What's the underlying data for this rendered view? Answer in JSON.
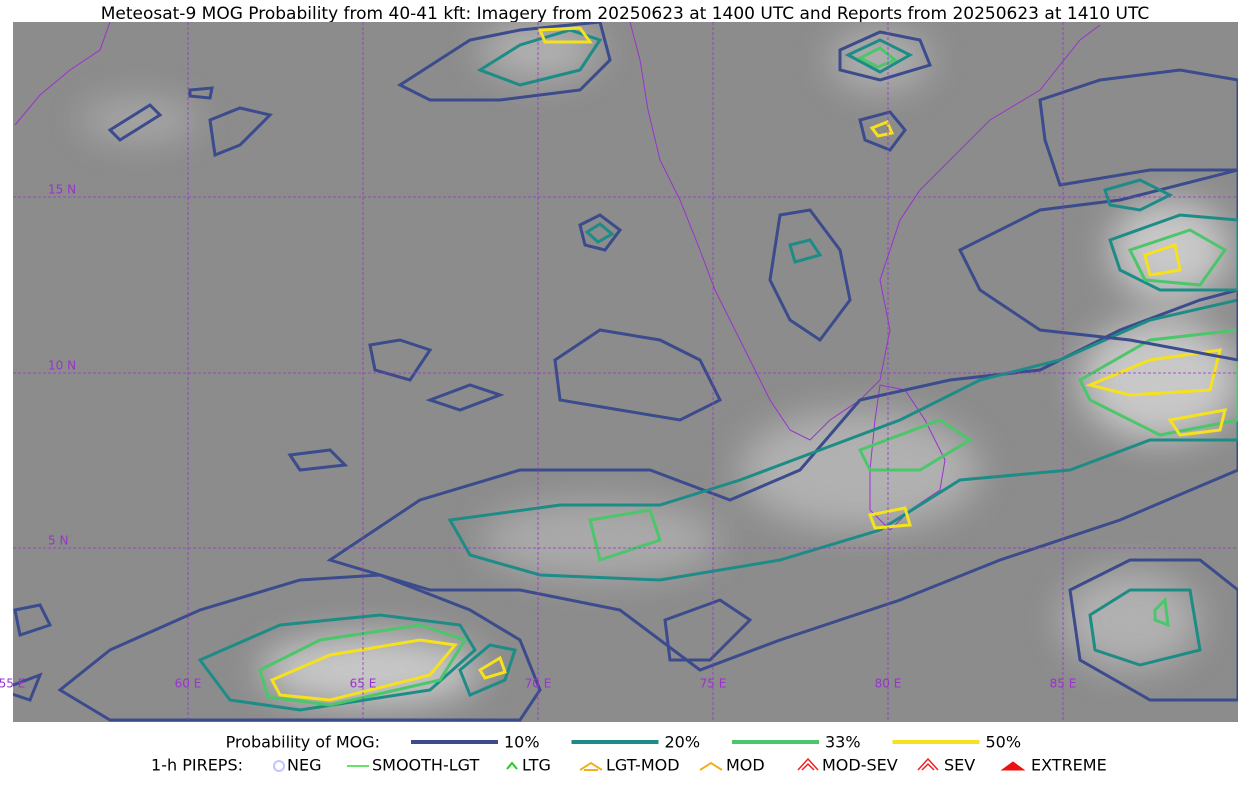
{
  "title": "Meteosat-9 MOG Probability from 40-41 kft: Imagery from 20250623 at 1400 UTC and Reports from 20250623 at 1410 UTC",
  "map": {
    "lat_labels": [
      "15 N",
      "10 N",
      "5 N"
    ],
    "lon_labels": [
      "55 E",
      "60 E",
      "65 E",
      "70 E",
      "75 E",
      "80 E",
      "85 E"
    ]
  },
  "legend": {
    "probability": {
      "label": "Probability of MOG:",
      "items": [
        {
          "label": "10%",
          "color": "#3b4b8c"
        },
        {
          "label": "20%",
          "color": "#1e8c86"
        },
        {
          "label": "33%",
          "color": "#4cc66a"
        },
        {
          "label": "50%",
          "color": "#f6e11e"
        }
      ]
    },
    "pireps": {
      "label": "1-h PIREPS:",
      "items": [
        {
          "label": "NEG",
          "color": "#c4c4ff"
        },
        {
          "label": "SMOOTH-LGT",
          "color": "#33dd33"
        },
        {
          "label": "LTG",
          "color": "#22cc22"
        },
        {
          "label": "LGT-MOD",
          "color": "#f0b020"
        },
        {
          "label": "MOD",
          "color": "#f0b020"
        },
        {
          "label": "MOD-SEV",
          "color": "#ee2222"
        },
        {
          "label": "SEV",
          "color": "#ee2222"
        },
        {
          "label": "EXTREME",
          "color": "#ee1111"
        }
      ]
    }
  }
}
